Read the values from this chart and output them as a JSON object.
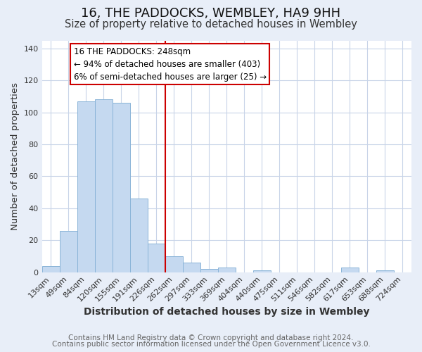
{
  "title": "16, THE PADDOCKS, WEMBLEY, HA9 9HH",
  "subtitle": "Size of property relative to detached houses in Wembley",
  "xlabel": "Distribution of detached houses by size in Wembley",
  "ylabel": "Number of detached properties",
  "footer_line1": "Contains HM Land Registry data © Crown copyright and database right 2024.",
  "footer_line2": "Contains public sector information licensed under the Open Government Licence v3.0.",
  "bar_labels": [
    "13sqm",
    "49sqm",
    "84sqm",
    "120sqm",
    "155sqm",
    "191sqm",
    "226sqm",
    "262sqm",
    "297sqm",
    "333sqm",
    "369sqm",
    "404sqm",
    "440sqm",
    "475sqm",
    "511sqm",
    "546sqm",
    "582sqm",
    "617sqm",
    "653sqm",
    "688sqm",
    "724sqm"
  ],
  "bar_values": [
    4,
    26,
    107,
    108,
    106,
    46,
    18,
    10,
    6,
    2,
    3,
    0,
    1,
    0,
    0,
    0,
    0,
    3,
    0,
    1,
    0
  ],
  "bar_color": "#c5d9f0",
  "bar_edge_color": "#8ab4d8",
  "vline_color": "#cc0000",
  "annotation_title": "16 THE PADDOCKS: 248sqm",
  "annotation_line1": "← 94% of detached houses are smaller (403)",
  "annotation_line2": "6% of semi-detached houses are larger (25) →",
  "annotation_box_edge_color": "#cc0000",
  "ylim": [
    0,
    145
  ],
  "yticks": [
    0,
    20,
    40,
    60,
    80,
    100,
    120,
    140
  ],
  "figure_bg": "#e8eef8",
  "plot_bg": "#ffffff",
  "grid_color": "#c8d4e8",
  "title_fontsize": 13,
  "subtitle_fontsize": 10.5,
  "xlabel_fontsize": 10,
  "ylabel_fontsize": 9.5,
  "tick_fontsize": 8,
  "annotation_fontsize": 8.5,
  "footer_fontsize": 7.5
}
